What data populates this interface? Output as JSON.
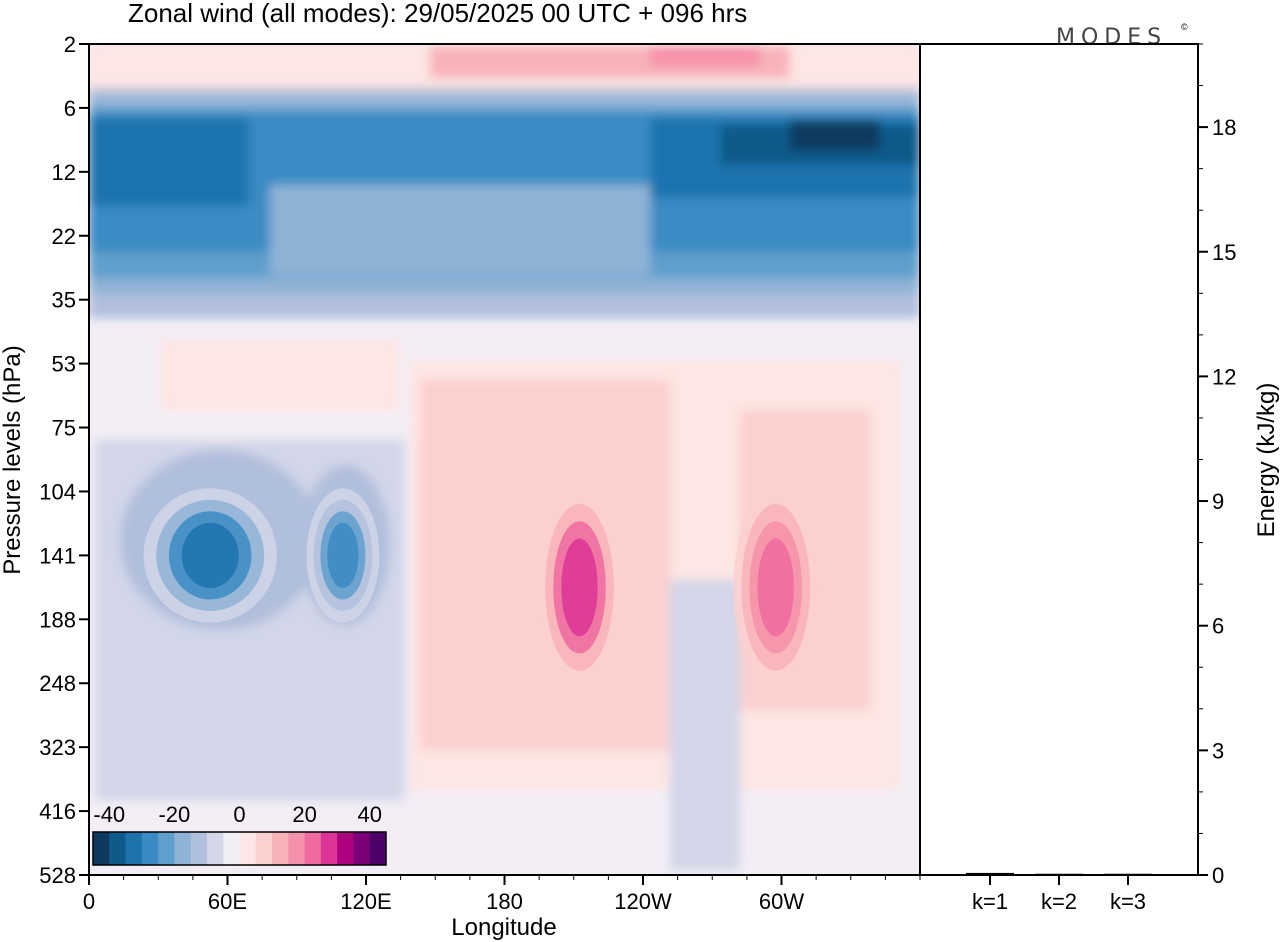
{
  "chart_data": {
    "type": "heatmap",
    "title": "Zonal wind (all modes):  29/05/2025  00 UTC  + 096 hrs",
    "logo": "MODES",
    "logo_mark": "©",
    "xlabel": "Longitude",
    "ylabel": "Pressure levels (hPa)",
    "x_ticks": [
      "0",
      "60E",
      "120E",
      "180",
      "120W",
      "60W"
    ],
    "y_ticks": [
      "2",
      "6",
      "12",
      "22",
      "35",
      "53",
      "75",
      "104",
      "141",
      "188",
      "248",
      "323",
      "416",
      "528"
    ],
    "colorbar": {
      "tick_labels": [
        "-40",
        "-20",
        "0",
        "20",
        "40"
      ],
      "range": [
        -45,
        45
      ],
      "colors": [
        "#0f3a5f",
        "#0e5a8a",
        "#1f73ad",
        "#3a8bc4",
        "#5f9fcc",
        "#8fb3d6",
        "#b0bfdc",
        "#d2d6e8",
        "#f1eef6",
        "#fde6e3",
        "#fbd0cf",
        "#f8b3b9",
        "#f591a8",
        "#ee6aa0",
        "#dd3497",
        "#ae017e",
        "#7a0177",
        "#4d006b"
      ]
    },
    "features": [
      {
        "name": "stratospheric easterly jet",
        "levels_hPa": [
          6,
          35
        ],
        "lon": [
          0,
          360
        ],
        "value": -35
      },
      {
        "name": "easterly core",
        "levels_hPa": [
          104,
          188
        ],
        "lon_E": [
          25,
          80
        ],
        "value": -34
      },
      {
        "name": "easterly core",
        "levels_hPa": [
          104,
          188
        ],
        "lon_E": [
          95,
          125
        ],
        "value": -28
      },
      {
        "name": "westerly core",
        "levels_hPa": [
          104,
          248
        ],
        "lon_E": [
          195,
          230
        ],
        "value": 28
      },
      {
        "name": "westerly core",
        "levels_hPa": [
          104,
          248
        ],
        "lon_E": [
          280,
          315
        ],
        "value": 22
      },
      {
        "name": "upper westerlies",
        "levels_hPa": [
          2,
          6
        ],
        "lon": [
          0,
          360
        ],
        "value": 12
      }
    ],
    "energy_panel": {
      "ylabel": "Energy (kJ/kg)",
      "y_ticks": [
        "0",
        "3",
        "6",
        "9",
        "12",
        "15",
        "18"
      ],
      "ylim": [
        0,
        20
      ],
      "categories": [
        "k=1",
        "k=2",
        "k=3"
      ],
      "values": [
        0.05,
        0.03,
        0.03
      ]
    }
  }
}
